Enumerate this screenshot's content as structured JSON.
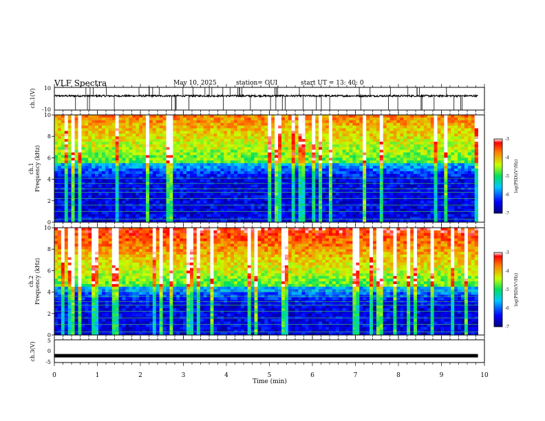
{
  "header": {
    "title": "VLF Spectra",
    "date": "May 10, 2025",
    "station": "station= OUI",
    "start": "start  UT  =   13: 40: 0"
  },
  "colors": {
    "spectrogram_low": "#00007f",
    "spectrogram_high": "#ff0000",
    "trace": "#000000"
  },
  "chart_data": [
    {
      "type": "line",
      "panel": "ch1-waveform",
      "ylabel": "ch.1(V)",
      "ylim": [
        -10,
        10
      ],
      "yticks": [
        "10",
        "-10"
      ],
      "x_range_min": [
        0,
        10
      ],
      "series_description_level_v": 0
    },
    {
      "type": "heatmap",
      "panel": "ch1-spectrogram",
      "ylabel": "ch.1\nFrequency (kHz)",
      "ylabel_line1": "ch.1",
      "ylabel_line2": "Frequency (kHz)",
      "ylim": [
        0,
        10
      ],
      "yticks": [
        "0",
        "2",
        "4",
        "6",
        "8",
        "10"
      ],
      "x_range_min": [
        0,
        10
      ],
      "data_end_min": 9.85,
      "transition_khz": 5.5,
      "colorbar": {
        "label": "log(PSD)(V²/Hz)",
        "range": [
          -7,
          -3
        ],
        "ticks": [
          "-3",
          "-4",
          "-5",
          "-6",
          "-7"
        ]
      }
    },
    {
      "type": "heatmap",
      "panel": "ch2-spectrogram",
      "ylabel": "ch.2\nFrequency (kHz)",
      "ylabel_line1": "ch.2",
      "ylabel_line2": "Frequency (kHz)",
      "ylim": [
        0,
        10
      ],
      "yticks": [
        "0",
        "2",
        "4",
        "6",
        "8",
        "10"
      ],
      "x_range_min": [
        0,
        10
      ],
      "data_end_min": 9.85,
      "transition_khz": 4.5,
      "colorbar": {
        "label": "log(PSD)(V²/Hz)",
        "range": [
          -7,
          -3
        ],
        "ticks": [
          "-3",
          "-4",
          "-5",
          "-6",
          "-7"
        ]
      }
    },
    {
      "type": "line",
      "panel": "ch3-waveform",
      "ylabel": "ch.3(V)",
      "ylim": [
        -5,
        5
      ],
      "yticks": [
        "5",
        "0",
        "-5"
      ],
      "level_v": -2,
      "x_range_min": [
        0,
        10
      ],
      "xlabel": "Time (min)",
      "xticks": [
        "0",
        "1",
        "2",
        "3",
        "4",
        "5",
        "6",
        "7",
        "8",
        "9",
        "10"
      ]
    }
  ]
}
